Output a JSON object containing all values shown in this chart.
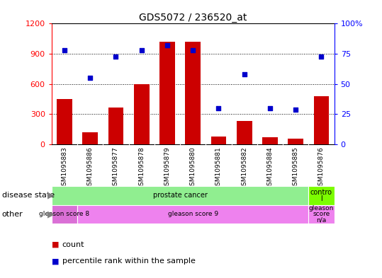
{
  "title": "GDS5072 / 236520_at",
  "samples": [
    "GSM1095883",
    "GSM1095886",
    "GSM1095877",
    "GSM1095878",
    "GSM1095879",
    "GSM1095880",
    "GSM1095881",
    "GSM1095882",
    "GSM1095884",
    "GSM1095885",
    "GSM1095876"
  ],
  "counts": [
    450,
    120,
    370,
    600,
    1020,
    1020,
    80,
    230,
    70,
    60,
    480
  ],
  "percentiles": [
    78,
    55,
    73,
    78,
    82,
    78,
    30,
    58,
    30,
    29,
    73
  ],
  "ylim_left": [
    0,
    1200
  ],
  "ylim_right": [
    0,
    100
  ],
  "yticks_left": [
    0,
    300,
    600,
    900,
    1200
  ],
  "yticks_right": [
    0,
    25,
    50,
    75,
    100
  ],
  "bar_color": "#cc0000",
  "dot_color": "#0000cc",
  "background_color": "#ffffff",
  "xtick_bg": "#d3d3d3",
  "disease_state_segments": [
    {
      "label": "prostate cancer",
      "start": 0,
      "end": 9,
      "color": "#90EE90"
    },
    {
      "label": "contro\nl",
      "start": 10,
      "end": 10,
      "color": "#7CFC00"
    }
  ],
  "other_segments": [
    {
      "label": "gleason score 8",
      "start": 0,
      "end": 0,
      "color": "#DA70D6"
    },
    {
      "label": "gleason score 9",
      "start": 1,
      "end": 9,
      "color": "#EE82EE"
    },
    {
      "label": "gleason\nscore\nn/a",
      "start": 10,
      "end": 10,
      "color": "#EE82EE"
    }
  ],
  "legend_items": [
    {
      "color": "#cc0000",
      "label": "count"
    },
    {
      "color": "#0000cc",
      "label": "percentile rank within the sample"
    }
  ]
}
